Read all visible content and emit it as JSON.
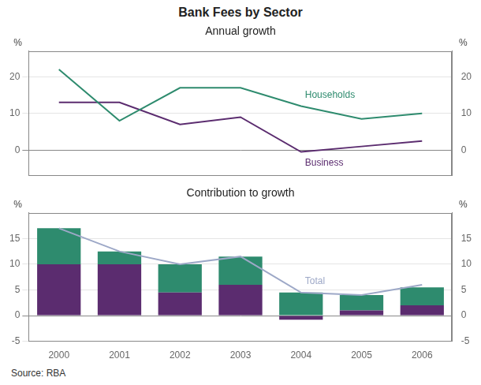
{
  "title": "Bank Fees by Sector",
  "source": "Source: RBA",
  "chart_data": [
    {
      "type": "line",
      "title": "Annual growth",
      "categories": [
        "2000",
        "2001",
        "2002",
        "2003",
        "2004",
        "2005",
        "2006"
      ],
      "series": [
        {
          "name": "Households",
          "color": "#2e8b6e",
          "values": [
            22,
            8,
            17,
            17,
            12,
            8.5,
            10
          ]
        },
        {
          "name": "Business",
          "color": "#5b2c6f",
          "values": [
            13,
            13,
            7,
            9,
            -0.5,
            1,
            2.5
          ]
        }
      ],
      "ylabel": "%",
      "ylim": [
        -7,
        27
      ],
      "yticks": [
        0,
        10,
        20
      ],
      "grid": true,
      "tick_labels": "y"
    },
    {
      "type": "bar",
      "title": "Contribution to growth",
      "categories": [
        "2000",
        "2001",
        "2002",
        "2003",
        "2004",
        "2005",
        "2006"
      ],
      "stacked": true,
      "series": [
        {
          "color": "#5b2c6f",
          "values": [
            10,
            10,
            4.5,
            6,
            -0.8,
            1,
            2
          ]
        },
        {
          "color": "#2e8b6e",
          "values": [
            7,
            2.5,
            5.5,
            5.5,
            4.5,
            3,
            3.5
          ]
        },
        {
          "name": "Total",
          "type": "line",
          "color": "#9da8c7",
          "values": [
            17,
            12.5,
            10,
            11.5,
            4.5,
            4,
            6
          ]
        }
      ],
      "ylabel": "%",
      "ylim": [
        -5,
        20
      ],
      "yticks": [
        -5,
        0,
        5,
        10,
        15
      ],
      "grid": true
    }
  ]
}
